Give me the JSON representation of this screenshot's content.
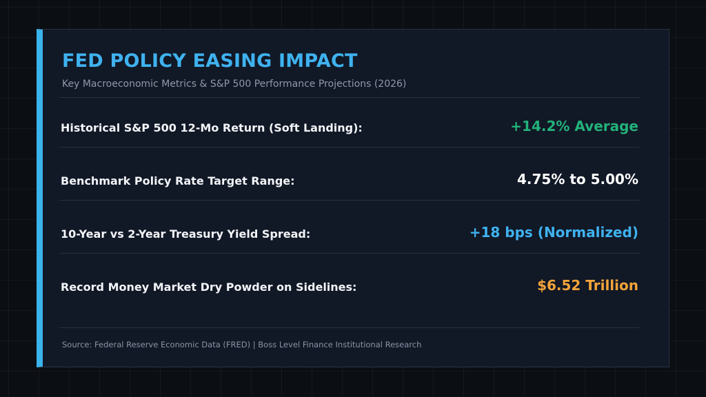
{
  "card": {
    "title": "FED POLICY EASING IMPACT",
    "subtitle": "Key Macroeconomic Metrics & S&P 500 Performance Projections (2026)",
    "metrics": [
      {
        "label": "Historical S&P 500 12-Mo Return (Soft Landing):",
        "value": "+14.2% Average",
        "color": "#22b27a"
      },
      {
        "label": "Benchmark Policy Rate Target Range:",
        "value": "4.75% to 5.00%",
        "color": "#ffffff"
      },
      {
        "label": "10-Year vs 2-Year Treasury Yield Spread:",
        "value": "+18 bps (Normalized)",
        "color": "#3fb2ef"
      },
      {
        "label": "Record Money Market Dry Powder on Sidelines:",
        "value": "$6.52 Trillion",
        "color": "#f2a33a"
      }
    ],
    "source": "Source: Federal Reserve Economic Data (FRED) | Boss Level Finance Institutional Research"
  },
  "colors": {
    "accent_bar": "#3bb4ec",
    "title": "#3fb2ef",
    "card_background": "#111826",
    "page_background": "#0b0e13"
  }
}
